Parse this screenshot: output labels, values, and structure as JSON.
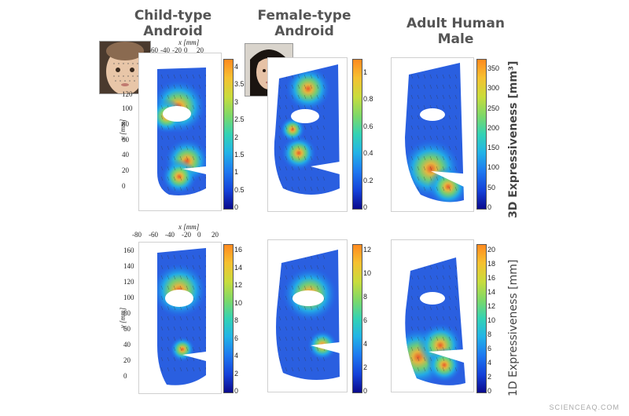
{
  "columns": [
    {
      "title_line1": "Child-type",
      "title_line2": "Android"
    },
    {
      "title_line1": "Female-type",
      "title_line2": "Android"
    },
    {
      "title_line1": "Adult Human Male",
      "title_line2": ""
    }
  ],
  "rows": [
    {
      "label": "3D Expressiveness [mm³]"
    },
    {
      "label": "1D Expressiveness [mm]"
    }
  ],
  "axes": {
    "x_label": "x [mm]",
    "y_label": "y [mm]",
    "top_x_ticks": [
      "-60",
      "-40",
      "-20",
      "0",
      "20"
    ],
    "top_y_ticks": [
      "120",
      "100",
      "80",
      "60",
      "40",
      "20",
      "0"
    ],
    "bottom_x_ticks": [
      "-80",
      "-60",
      "-40",
      "-20",
      "0",
      "20"
    ],
    "bottom_y_ticks": [
      "160",
      "140",
      "120",
      "100",
      "80",
      "60",
      "40",
      "20",
      "0"
    ]
  },
  "colors": {
    "low": "#0a0a8c",
    "mid": "#33d2b4",
    "high": "#ff8a1e",
    "mask_base": "#2a5fe0"
  },
  "chart_data": [
    {
      "type": "heatmap",
      "title": "Child-type Android",
      "colorbar_ticks": [
        "4",
        "3.5",
        "3",
        "2.5",
        "2",
        "1.5",
        "1",
        "0.5",
        "0"
      ],
      "ylabel": "y [mm]",
      "xlabel": "x [mm]"
    },
    {
      "type": "heatmap",
      "title": "Female-type Android",
      "colorbar_ticks": [
        "1",
        "0.8",
        "0.6",
        "0.4",
        "0.2",
        "0"
      ]
    },
    {
      "type": "heatmap",
      "title": "Adult Human Male",
      "colorbar_ticks": [
        "350",
        "300",
        "250",
        "200",
        "150",
        "100",
        "50",
        "0"
      ],
      "colorbar_label": "3D Expressiveness [mm³]"
    },
    {
      "type": "heatmap",
      "title": "Child-type Android",
      "colorbar_ticks": [
        "16",
        "14",
        "12",
        "10",
        "8",
        "6",
        "4",
        "2",
        "0"
      ],
      "ylabel": "y [mm]",
      "xlabel": "x [mm]"
    },
    {
      "type": "heatmap",
      "title": "Female-type Android",
      "colorbar_ticks": [
        "12",
        "10",
        "8",
        "6",
        "4",
        "2",
        "0"
      ]
    },
    {
      "type": "heatmap",
      "title": "Adult Human Male",
      "colorbar_ticks": [
        "20",
        "18",
        "16",
        "14",
        "12",
        "10",
        "8",
        "6",
        "4",
        "2",
        "0"
      ],
      "colorbar_label": "1D Expressiveness [mm]"
    }
  ],
  "watermark": "SCIENCEAQ.COM"
}
